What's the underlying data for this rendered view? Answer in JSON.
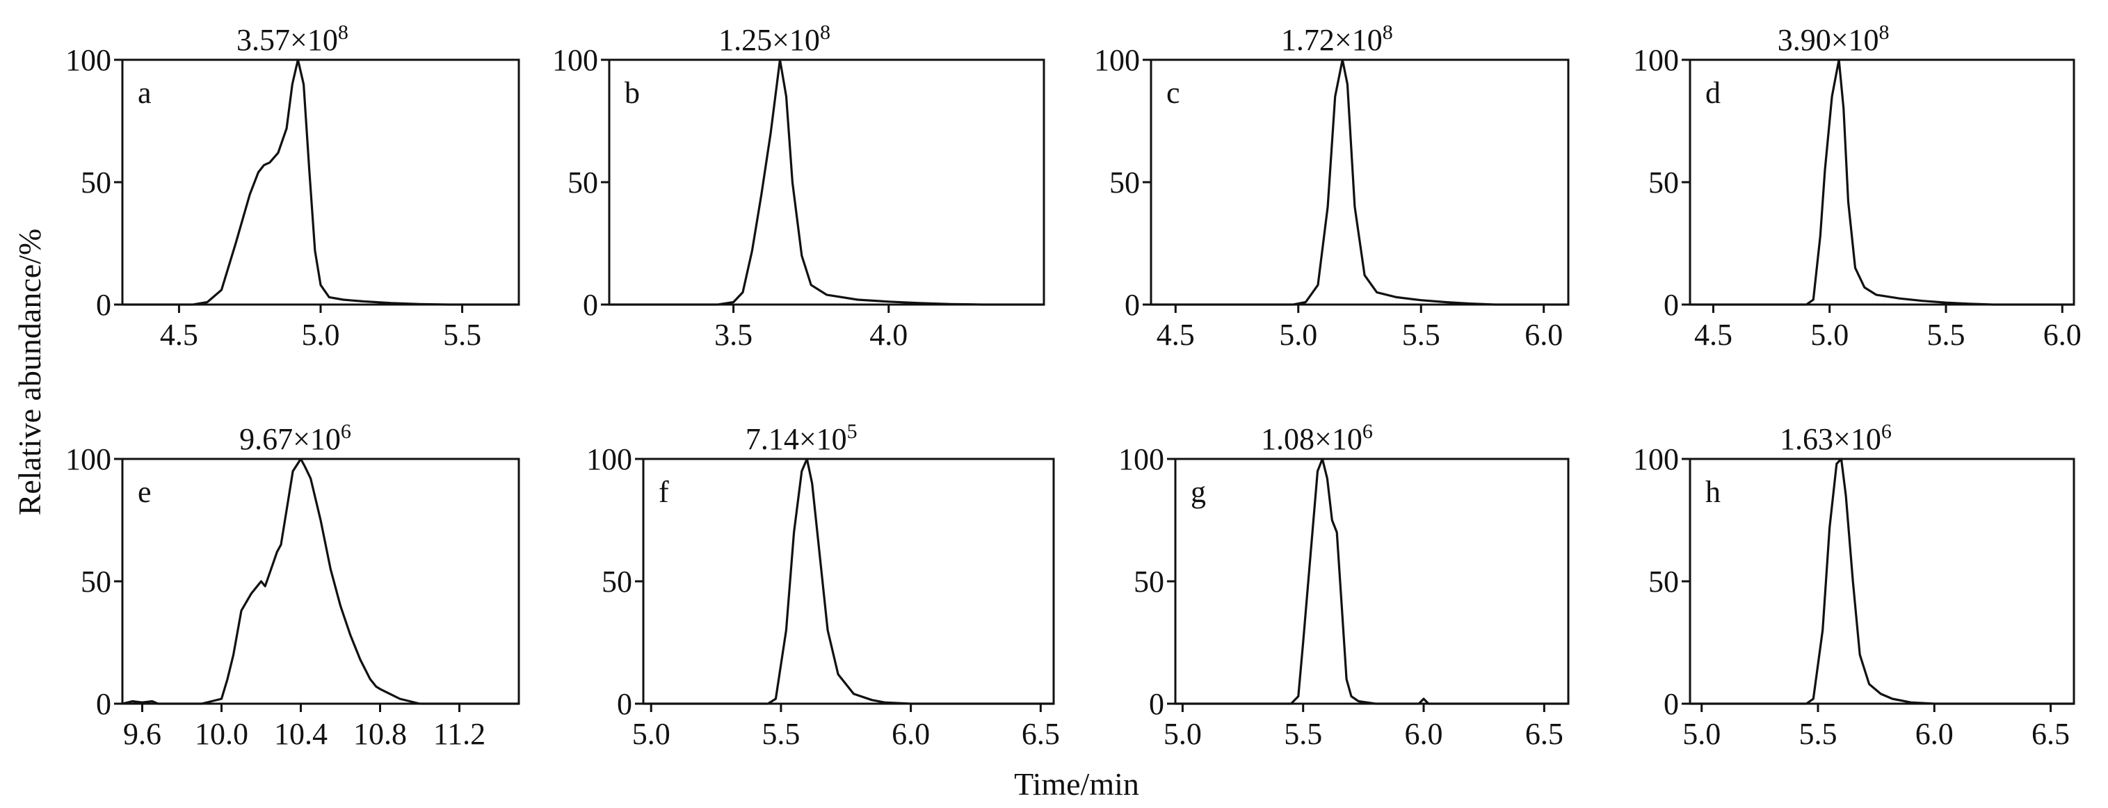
{
  "figure": {
    "ylabel": "Relative abundance/%",
    "xlabel": "Time/min"
  },
  "chart_data": [
    {
      "type": "line",
      "label": "a",
      "title_base": "3.57×10",
      "title_exp": "8",
      "xlim": [
        4.3,
        5.7
      ],
      "ylim": [
        0,
        100
      ],
      "xticks": [
        "4.5",
        "5.0",
        "5.5"
      ],
      "yticks": [
        "0",
        "50",
        "100"
      ],
      "series": [
        {
          "x": [
            4.3,
            4.55,
            4.6,
            4.65,
            4.7,
            4.75,
            4.78,
            4.8,
            4.82,
            4.85,
            4.88,
            4.9,
            4.92,
            4.94,
            4.96,
            4.98,
            5.0,
            5.03,
            5.08,
            5.15,
            5.25,
            5.35,
            5.45,
            5.55,
            5.7
          ],
          "y": [
            0,
            0,
            1,
            6,
            25,
            45,
            54,
            57,
            58,
            62,
            72,
            90,
            100,
            90,
            55,
            22,
            8,
            3,
            2,
            1.3,
            0.6,
            0.2,
            0,
            0,
            0
          ]
        }
      ]
    },
    {
      "type": "line",
      "label": "b",
      "title_base": "1.25×10",
      "title_exp": "8",
      "xlim": [
        3.1,
        4.5
      ],
      "ylim": [
        0,
        100
      ],
      "xticks": [
        "3.5",
        "4.0"
      ],
      "yticks": [
        "0",
        "50",
        "100"
      ],
      "series": [
        {
          "x": [
            3.1,
            3.45,
            3.5,
            3.53,
            3.56,
            3.59,
            3.62,
            3.65,
            3.67,
            3.69,
            3.72,
            3.75,
            3.8,
            3.9,
            4.0,
            4.1,
            4.2,
            4.3,
            4.5
          ],
          "y": [
            0,
            0,
            1,
            5,
            22,
            45,
            70,
            100,
            85,
            50,
            20,
            8,
            4,
            2,
            1.2,
            0.6,
            0.2,
            0,
            0
          ]
        }
      ]
    },
    {
      "type": "line",
      "label": "c",
      "title_base": "1.72×10",
      "title_exp": "8",
      "xlim": [
        4.4,
        6.1
      ],
      "ylim": [
        0,
        100
      ],
      "xticks": [
        "4.5",
        "5.0",
        "5.5",
        "6.0"
      ],
      "yticks": [
        "0",
        "50",
        "100"
      ],
      "series": [
        {
          "x": [
            4.4,
            4.98,
            5.03,
            5.08,
            5.12,
            5.15,
            5.18,
            5.2,
            5.23,
            5.27,
            5.32,
            5.4,
            5.5,
            5.6,
            5.7,
            5.8,
            6.1
          ],
          "y": [
            0,
            0,
            1,
            8,
            40,
            85,
            100,
            90,
            40,
            12,
            5,
            3,
            1.8,
            1,
            0.4,
            0,
            0
          ]
        }
      ]
    },
    {
      "type": "line",
      "label": "d",
      "title_base": "3.90×10",
      "title_exp": "8",
      "xlim": [
        4.4,
        6.05
      ],
      "ylim": [
        0,
        100
      ],
      "xticks": [
        "4.5",
        "5.0",
        "5.5",
        "6.0"
      ],
      "yticks": [
        "0",
        "50",
        "100"
      ],
      "series": [
        {
          "x": [
            4.4,
            4.9,
            4.93,
            4.96,
            4.98,
            5.01,
            5.04,
            5.06,
            5.08,
            5.11,
            5.15,
            5.2,
            5.3,
            5.4,
            5.5,
            5.6,
            5.7,
            6.05
          ],
          "y": [
            0,
            0,
            2,
            28,
            55,
            85,
            100,
            80,
            42,
            15,
            7,
            4,
            2.5,
            1.5,
            0.8,
            0.3,
            0,
            0
          ]
        }
      ]
    },
    {
      "type": "line",
      "label": "e",
      "title_base": "9.67×10",
      "title_exp": "6",
      "xlim": [
        9.5,
        11.5
      ],
      "ylim": [
        0,
        100
      ],
      "xticks": [
        "9.6",
        "10.0",
        "10.4",
        "10.8",
        "11.2"
      ],
      "yticks": [
        "0",
        "50",
        "100"
      ],
      "series": [
        {
          "x": [
            9.5,
            9.55,
            9.6,
            9.65,
            9.68,
            9.9,
            10.0,
            10.03,
            10.06,
            10.1,
            10.15,
            10.2,
            10.22,
            10.25,
            10.28,
            10.3,
            10.33,
            10.36,
            10.4,
            10.42,
            10.45,
            10.5,
            10.55,
            10.6,
            10.65,
            10.7,
            10.75,
            10.78,
            10.8,
            10.85,
            10.9,
            10.95,
            11.0,
            11.1,
            11.5
          ],
          "y": [
            0,
            1,
            0.5,
            1,
            0,
            0,
            2,
            10,
            20,
            38,
            45,
            50,
            48,
            55,
            62,
            65,
            80,
            95,
            100,
            97,
            92,
            75,
            55,
            40,
            28,
            18,
            10,
            7,
            6,
            4,
            2,
            1,
            0,
            0,
            0
          ]
        }
      ]
    },
    {
      "type": "line",
      "label": "f",
      "title_base": "7.14×10",
      "title_exp": "5",
      "xlim": [
        4.97,
        6.55
      ],
      "ylim": [
        0,
        100
      ],
      "xticks": [
        "5.0",
        "5.5",
        "6.0",
        "6.5"
      ],
      "yticks": [
        "0",
        "50",
        "100"
      ],
      "series": [
        {
          "x": [
            4.97,
            5.45,
            5.48,
            5.52,
            5.55,
            5.58,
            5.6,
            5.62,
            5.65,
            5.68,
            5.72,
            5.78,
            5.85,
            5.9,
            6.0,
            6.1,
            6.55
          ],
          "y": [
            0,
            0,
            2,
            30,
            70,
            95,
            100,
            90,
            60,
            30,
            12,
            4,
            1.5,
            0.5,
            0,
            0,
            0
          ]
        }
      ]
    },
    {
      "type": "line",
      "label": "g",
      "title_base": "1.08×10",
      "title_exp": "6",
      "xlim": [
        4.97,
        6.6
      ],
      "ylim": [
        0,
        100
      ],
      "xticks": [
        "5.0",
        "5.5",
        "6.0",
        "6.5"
      ],
      "yticks": [
        "0",
        "50",
        "100"
      ],
      "series": [
        {
          "x": [
            4.97,
            5.45,
            5.48,
            5.5,
            5.53,
            5.56,
            5.58,
            5.6,
            5.62,
            5.64,
            5.66,
            5.68,
            5.7,
            5.73,
            5.8,
            5.98,
            6.0,
            6.02,
            6.05,
            6.6
          ],
          "y": [
            0,
            0,
            3,
            25,
            60,
            95,
            100,
            92,
            75,
            70,
            40,
            10,
            3,
            1,
            0,
            0,
            2,
            0,
            0,
            0
          ]
        }
      ]
    },
    {
      "type": "line",
      "label": "h",
      "title_base": "1.63×10",
      "title_exp": "6",
      "xlim": [
        4.95,
        6.6
      ],
      "ylim": [
        0,
        100
      ],
      "xticks": [
        "5.0",
        "5.5",
        "6.0",
        "6.5"
      ],
      "yticks": [
        "0",
        "50",
        "100"
      ],
      "series": [
        {
          "x": [
            4.95,
            5.45,
            5.48,
            5.52,
            5.55,
            5.58,
            5.6,
            5.62,
            5.65,
            5.68,
            5.72,
            5.77,
            5.82,
            5.9,
            6.0,
            6.6
          ],
          "y": [
            0,
            0,
            2,
            30,
            72,
            98,
            100,
            85,
            50,
            20,
            8,
            4,
            2,
            0.5,
            0,
            0
          ]
        }
      ]
    }
  ]
}
